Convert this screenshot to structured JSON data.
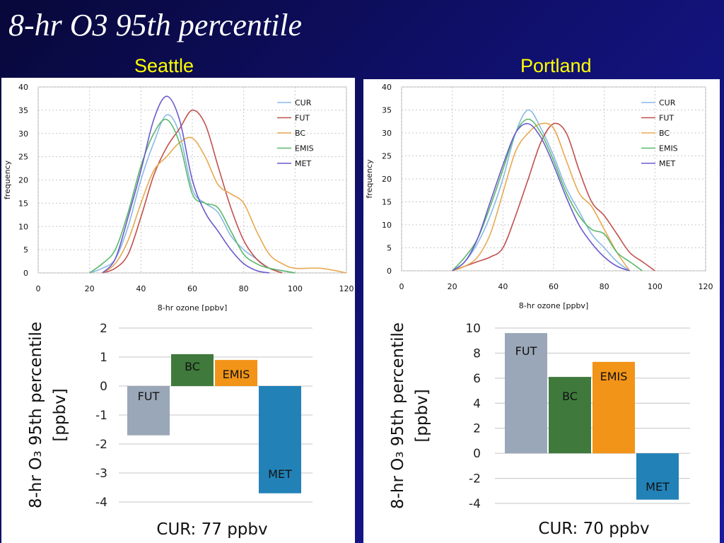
{
  "slide": {
    "title": "8-hr O3 95th percentile",
    "cities": [
      "Seattle",
      "Portland"
    ],
    "colors": {
      "title": "#ffffff",
      "city_labels": "#ffff00",
      "background": "#10106e"
    }
  },
  "chart_data": [
    {
      "type": "line",
      "city": "Seattle",
      "xlabel": "8-hr ozone [ppbv]",
      "ylabel": "frequency",
      "xlim": [
        0,
        120
      ],
      "ylim": [
        0,
        40
      ],
      "xticks": [
        0,
        20,
        40,
        60,
        80,
        100,
        120
      ],
      "yticks": [
        0,
        5,
        10,
        15,
        20,
        25,
        30,
        35,
        40
      ],
      "grid": true,
      "legend_position": "top-right",
      "series": [
        {
          "name": "CUR",
          "color": "#8ab8e6",
          "x": [
            20,
            25,
            30,
            35,
            40,
            45,
            50,
            55,
            60,
            65,
            70,
            75,
            80,
            85,
            90,
            95,
            100
          ],
          "y": [
            0,
            1,
            3,
            10,
            20,
            28,
            34,
            30,
            18,
            15,
            13,
            8,
            5,
            3,
            1,
            0.5,
            0
          ]
        },
        {
          "name": "FUT",
          "color": "#c0504d",
          "x": [
            25,
            30,
            35,
            40,
            45,
            50,
            55,
            60,
            65,
            70,
            75,
            80,
            85,
            90,
            95
          ],
          "y": [
            0,
            1,
            4,
            12,
            21,
            27,
            31,
            35,
            32,
            23,
            14,
            7,
            3,
            1,
            0
          ]
        },
        {
          "name": "BC",
          "color": "#e8a850",
          "x": [
            25,
            30,
            35,
            40,
            45,
            50,
            55,
            60,
            65,
            70,
            75,
            80,
            85,
            90,
            95,
            100,
            110,
            120
          ],
          "y": [
            0,
            2,
            7,
            15,
            22,
            25,
            28,
            29,
            25,
            19,
            17,
            15,
            9,
            4,
            2,
            1,
            1,
            0
          ]
        },
        {
          "name": "EMIS",
          "color": "#5ab86a",
          "x": [
            20,
            25,
            30,
            35,
            40,
            45,
            50,
            55,
            60,
            65,
            70,
            75,
            80,
            85,
            90,
            100
          ],
          "y": [
            0,
            2,
            5,
            13,
            23,
            30,
            33,
            28,
            17,
            15,
            14,
            9,
            4,
            2,
            1,
            0
          ]
        },
        {
          "name": "MET",
          "color": "#6a5acd",
          "x": [
            25,
            30,
            35,
            40,
            45,
            50,
            55,
            60,
            65,
            70,
            75,
            80,
            85,
            90
          ],
          "y": [
            0,
            3,
            12,
            22,
            33,
            38,
            33,
            20,
            13,
            9,
            5,
            2,
            0.5,
            0
          ]
        }
      ]
    },
    {
      "type": "line",
      "city": "Portland",
      "xlabel": "8-hr ozone [ppbv]",
      "ylabel": "frequency",
      "xlim": [
        0,
        120
      ],
      "ylim": [
        0,
        40
      ],
      "xticks": [
        0,
        20,
        40,
        60,
        80,
        100,
        120
      ],
      "yticks": [
        0,
        5,
        10,
        15,
        20,
        25,
        30,
        35,
        40
      ],
      "grid": true,
      "legend_position": "top-right",
      "series": [
        {
          "name": "CUR",
          "color": "#8ab8e6",
          "x": [
            20,
            25,
            30,
            35,
            40,
            45,
            50,
            55,
            60,
            65,
            70,
            75,
            80,
            85,
            90
          ],
          "y": [
            0,
            2,
            6,
            12,
            20,
            30,
            35,
            31,
            25,
            18,
            13,
            8,
            5,
            2,
            0
          ]
        },
        {
          "name": "FUT",
          "color": "#c0504d",
          "x": [
            20,
            25,
            30,
            35,
            40,
            45,
            50,
            55,
            60,
            65,
            70,
            75,
            80,
            85,
            90,
            95,
            100
          ],
          "y": [
            0,
            1,
            2,
            3,
            5,
            12,
            20,
            28,
            32,
            30,
            22,
            15,
            12,
            8,
            4,
            2,
            0
          ]
        },
        {
          "name": "BC",
          "color": "#e8a850",
          "x": [
            20,
            25,
            30,
            35,
            40,
            45,
            50,
            55,
            60,
            65,
            70,
            75,
            80,
            85,
            90
          ],
          "y": [
            0,
            1,
            3,
            8,
            17,
            26,
            30,
            32,
            31,
            24,
            17,
            14,
            9,
            4,
            0
          ]
        },
        {
          "name": "EMIS",
          "color": "#5ab86a",
          "x": [
            20,
            25,
            30,
            35,
            40,
            45,
            50,
            55,
            60,
            65,
            70,
            75,
            80,
            85,
            90,
            95
          ],
          "y": [
            0,
            3,
            7,
            14,
            22,
            30,
            33,
            30,
            24,
            17,
            12,
            9,
            8,
            4,
            2,
            0
          ]
        },
        {
          "name": "MET",
          "color": "#6a5acd",
          "x": [
            20,
            25,
            30,
            35,
            40,
            45,
            50,
            55,
            60,
            65,
            70,
            75,
            80,
            85,
            90
          ],
          "y": [
            0,
            2,
            7,
            15,
            23,
            30,
            32,
            29,
            23,
            16,
            10,
            6,
            3,
            1,
            0
          ]
        }
      ]
    },
    {
      "type": "bar",
      "city": "Seattle",
      "ylabel": "8-hr O₃ 95th percentile [ppbv]",
      "xlabel": "CUR: 77 ppbv",
      "ylim": [
        -4,
        2
      ],
      "yticks": [
        2,
        1,
        0,
        -1,
        -2,
        -3,
        -4
      ],
      "grid": true,
      "categories": [
        "FUT",
        "BC",
        "EMIS",
        "MET"
      ],
      "values": [
        -1.7,
        1.1,
        0.9,
        -3.7
      ],
      "colors": [
        "#9aa7b8",
        "#3f7a3c",
        "#f29418",
        "#2282b8"
      ]
    },
    {
      "type": "bar",
      "city": "Portland",
      "ylabel": "8-hr O₃ 95th percentile [ppbv]",
      "xlabel": "CUR: 70 ppbv",
      "ylim": [
        -4,
        10
      ],
      "yticks": [
        10,
        8,
        6,
        4,
        2,
        0,
        -2,
        -4
      ],
      "grid": true,
      "categories": [
        "FUT",
        "BC",
        "EMIS",
        "MET"
      ],
      "values": [
        9.6,
        6.1,
        7.3,
        -3.7
      ],
      "colors": [
        "#9aa7b8",
        "#3f7a3c",
        "#f29418",
        "#2282b8"
      ]
    }
  ]
}
